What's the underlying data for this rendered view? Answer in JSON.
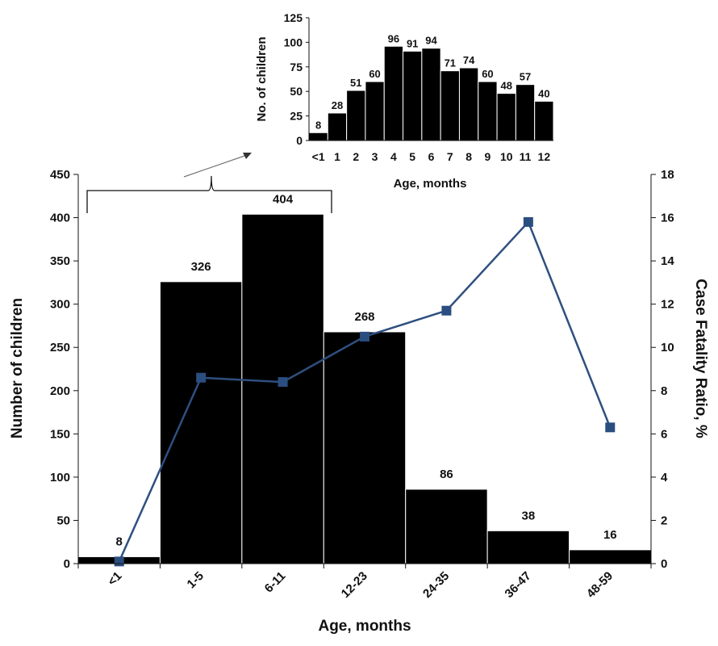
{
  "chart_data": [
    {
      "type": "bar+line",
      "categories": [
        "<1",
        "1-5",
        "6-11",
        "12-23",
        "24-35",
        "36-47",
        "48-59"
      ],
      "bar_values": [
        8,
        326,
        404,
        268,
        86,
        38,
        16
      ],
      "line_values": [
        0.1,
        8.6,
        8.4,
        10.5,
        11.7,
        15.8,
        6.3
      ],
      "xlabel": "Age, months",
      "ylabel_left": "Number of children",
      "ylabel_right": "Case Fatality Ratio, %",
      "ylim_left": [
        0,
        450
      ],
      "yticks_left": [
        0,
        50,
        100,
        150,
        200,
        250,
        300,
        350,
        400,
        450
      ],
      "ylim_right": [
        0,
        18
      ],
      "yticks_right": [
        0,
        2,
        4,
        6,
        8,
        10,
        12,
        14,
        16,
        18
      ],
      "grid": false,
      "bar_color": "#000000",
      "line_color": "#2f4f7f",
      "marker_color": "#2a4e80"
    },
    {
      "type": "bar",
      "categories": [
        "<1",
        "1",
        "2",
        "3",
        "4",
        "5",
        "6",
        "7",
        "8",
        "9",
        "10",
        "11",
        "12"
      ],
      "values": [
        8,
        28,
        51,
        60,
        96,
        91,
        94,
        71,
        74,
        60,
        48,
        57,
        40
      ],
      "xlabel": "Age, months",
      "ylabel": "No. of children",
      "ylim": [
        0,
        125
      ],
      "yticks": [
        0,
        25,
        50,
        75,
        100,
        125
      ],
      "grid": false,
      "bar_color": "#000000"
    }
  ]
}
